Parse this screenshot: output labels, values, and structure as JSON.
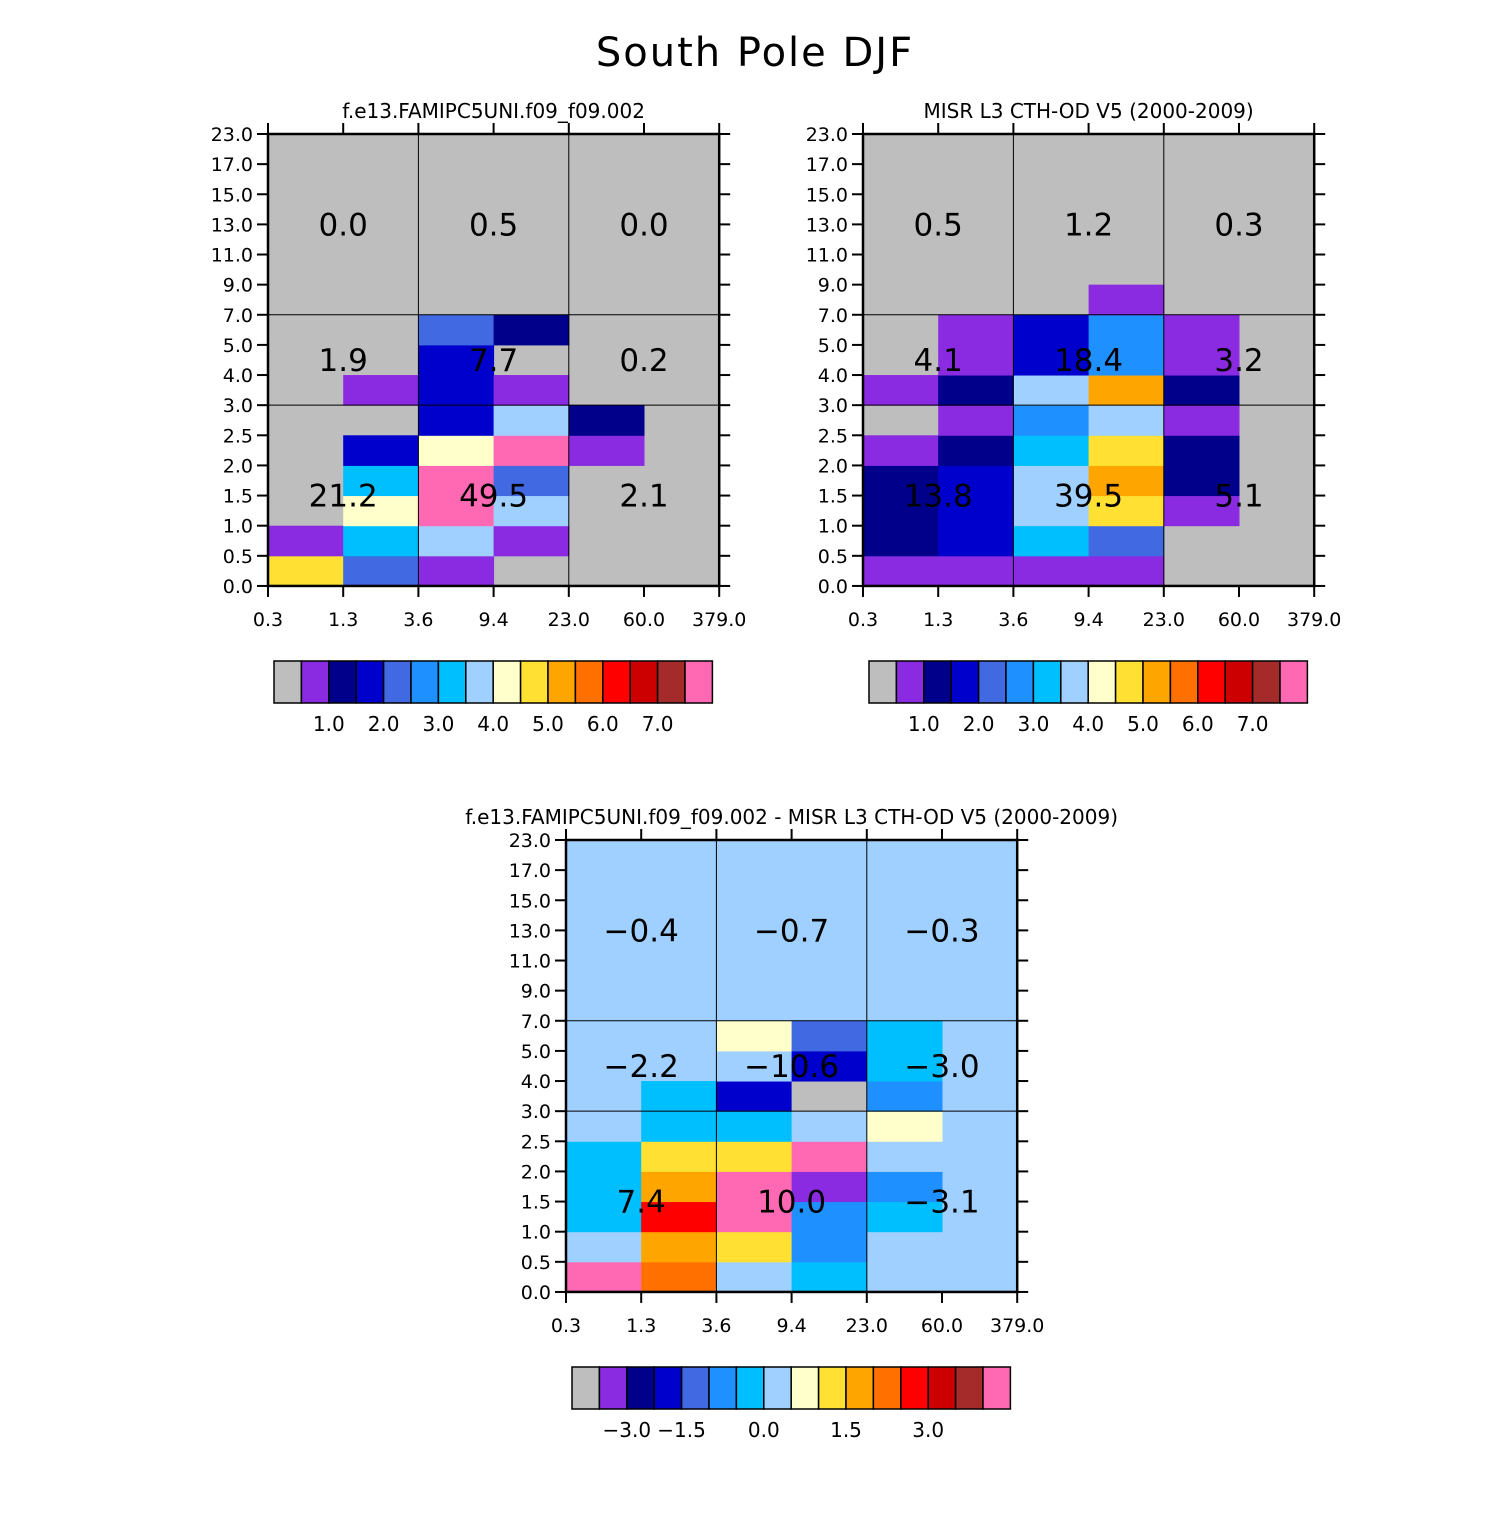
{
  "title": "South Pole DJF",
  "palette": [
    "#bebebe",
    "#8a2be2",
    "#00008b",
    "#0000cd",
    "#4169e1",
    "#1e90ff",
    "#00bfff",
    "#a0d0ff",
    "#ffffcc",
    "#ffe033",
    "#ffa500",
    "#ff7000",
    "#ff0000",
    "#cc0000",
    "#a52a2a",
    "#ff69b4"
  ],
  "chart_data": [
    {
      "id": "model",
      "type": "heatmap",
      "title": "f.e13.FAMIPC5UNI.f09_f09.002",
      "xticks": [
        "0.3",
        "1.3",
        "3.6",
        "9.4",
        "23.0",
        "60.0",
        "379.0"
      ],
      "yticks": [
        "0.0",
        "0.5",
        "1.0",
        "1.5",
        "2.0",
        "2.5",
        "3.0",
        "4.0",
        "5.0",
        "7.0",
        "9.0",
        "11.0",
        "13.0",
        "15.0",
        "17.0",
        "23.0"
      ],
      "xlabel": "",
      "ylabel": "",
      "grid_x": [
        "3.6",
        "23.0"
      ],
      "grid_y": [
        "3.0",
        "7.0"
      ],
      "cells": [
        {
          "x": 0,
          "y": 0,
          "c": 9
        },
        {
          "x": 1,
          "y": 0,
          "c": 4
        },
        {
          "x": 2,
          "y": 0,
          "c": 1
        },
        {
          "x": 0,
          "y": 1,
          "c": 1
        },
        {
          "x": 1,
          "y": 1,
          "c": 6
        },
        {
          "x": 2,
          "y": 1,
          "c": 7
        },
        {
          "x": 3,
          "y": 1,
          "c": 1
        },
        {
          "x": 1,
          "y": 2,
          "c": 8
        },
        {
          "x": 2,
          "y": 2,
          "c": 15
        },
        {
          "x": 3,
          "y": 2,
          "c": 7
        },
        {
          "x": 1,
          "y": 3,
          "c": 6
        },
        {
          "x": 2,
          "y": 3,
          "c": 15
        },
        {
          "x": 3,
          "y": 3,
          "c": 4
        },
        {
          "x": 1,
          "y": 4,
          "c": 3
        },
        {
          "x": 2,
          "y": 4,
          "c": 8
        },
        {
          "x": 3,
          "y": 4,
          "c": 15
        },
        {
          "x": 4,
          "y": 4,
          "c": 1
        },
        {
          "x": 2,
          "y": 5,
          "c": 3
        },
        {
          "x": 3,
          "y": 5,
          "c": 7
        },
        {
          "x": 4,
          "y": 5,
          "c": 2
        },
        {
          "x": 1,
          "y": 6,
          "c": 1
        },
        {
          "x": 2,
          "y": 6,
          "c": 3
        },
        {
          "x": 3,
          "y": 6,
          "c": 1
        },
        {
          "x": 2,
          "y": 7,
          "c": 3
        },
        {
          "x": 2,
          "y": 8,
          "c": 4
        },
        {
          "x": 3,
          "y": 8,
          "c": 2
        }
      ],
      "totals": [
        {
          "xi": 0,
          "yi": 0,
          "value": "21.2"
        },
        {
          "xi": 1,
          "yi": 0,
          "value": "49.5"
        },
        {
          "xi": 2,
          "yi": 0,
          "value": "2.1"
        },
        {
          "xi": 0,
          "yi": 1,
          "value": "1.9"
        },
        {
          "xi": 1,
          "yi": 1,
          "value": "7.7"
        },
        {
          "xi": 2,
          "yi": 1,
          "value": "0.2"
        },
        {
          "xi": 0,
          "yi": 2,
          "value": "0.0"
        },
        {
          "xi": 1,
          "yi": 2,
          "value": "0.5"
        },
        {
          "xi": 2,
          "yi": 2,
          "value": "0.0"
        }
      ],
      "colorbar": {
        "labels": [
          "1.0",
          "2.0",
          "3.0",
          "4.0",
          "5.0",
          "6.0",
          "7.0"
        ],
        "label_boundaries": [
          2,
          4,
          6,
          8,
          10,
          12,
          14
        ]
      }
    },
    {
      "id": "obs",
      "type": "heatmap",
      "title": "MISR L3 CTH-OD V5 (2000-2009)",
      "xticks": [
        "0.3",
        "1.3",
        "3.6",
        "9.4",
        "23.0",
        "60.0",
        "379.0"
      ],
      "yticks": [
        "0.0",
        "0.5",
        "1.0",
        "1.5",
        "2.0",
        "2.5",
        "3.0",
        "4.0",
        "5.0",
        "7.0",
        "9.0",
        "11.0",
        "13.0",
        "15.0",
        "17.0",
        "23.0"
      ],
      "xlabel": "",
      "ylabel": "",
      "grid_x": [
        "3.6",
        "23.0"
      ],
      "grid_y": [
        "3.0",
        "7.0"
      ],
      "cells": [
        {
          "x": 0,
          "y": 0,
          "c": 1
        },
        {
          "x": 1,
          "y": 0,
          "c": 1
        },
        {
          "x": 2,
          "y": 0,
          "c": 1
        },
        {
          "x": 3,
          "y": 0,
          "c": 1
        },
        {
          "x": 0,
          "y": 1,
          "c": 2
        },
        {
          "x": 1,
          "y": 1,
          "c": 3
        },
        {
          "x": 2,
          "y": 1,
          "c": 6
        },
        {
          "x": 3,
          "y": 1,
          "c": 4
        },
        {
          "x": 0,
          "y": 2,
          "c": 2
        },
        {
          "x": 1,
          "y": 2,
          "c": 3
        },
        {
          "x": 2,
          "y": 2,
          "c": 7
        },
        {
          "x": 3,
          "y": 2,
          "c": 9
        },
        {
          "x": 4,
          "y": 2,
          "c": 1
        },
        {
          "x": 0,
          "y": 3,
          "c": 2
        },
        {
          "x": 1,
          "y": 3,
          "c": 3
        },
        {
          "x": 2,
          "y": 3,
          "c": 7
        },
        {
          "x": 3,
          "y": 3,
          "c": 10
        },
        {
          "x": 4,
          "y": 3,
          "c": 2
        },
        {
          "x": 0,
          "y": 4,
          "c": 1
        },
        {
          "x": 1,
          "y": 4,
          "c": 2
        },
        {
          "x": 2,
          "y": 4,
          "c": 6
        },
        {
          "x": 3,
          "y": 4,
          "c": 9
        },
        {
          "x": 4,
          "y": 4,
          "c": 2
        },
        {
          "x": 1,
          "y": 5,
          "c": 1
        },
        {
          "x": 2,
          "y": 5,
          "c": 5
        },
        {
          "x": 3,
          "y": 5,
          "c": 7
        },
        {
          "x": 4,
          "y": 5,
          "c": 1
        },
        {
          "x": 0,
          "y": 6,
          "c": 1
        },
        {
          "x": 1,
          "y": 6,
          "c": 2
        },
        {
          "x": 2,
          "y": 6,
          "c": 7
        },
        {
          "x": 3,
          "y": 6,
          "c": 10
        },
        {
          "x": 4,
          "y": 6,
          "c": 2
        },
        {
          "x": 1,
          "y": 7,
          "c": 1
        },
        {
          "x": 2,
          "y": 7,
          "c": 3
        },
        {
          "x": 3,
          "y": 7,
          "c": 5
        },
        {
          "x": 4,
          "y": 7,
          "c": 1
        },
        {
          "x": 1,
          "y": 8,
          "c": 1
        },
        {
          "x": 2,
          "y": 8,
          "c": 3
        },
        {
          "x": 3,
          "y": 8,
          "c": 5
        },
        {
          "x": 4,
          "y": 8,
          "c": 1
        },
        {
          "x": 3,
          "y": 9,
          "c": 1
        }
      ],
      "totals": [
        {
          "xi": 0,
          "yi": 0,
          "value": "13.8"
        },
        {
          "xi": 1,
          "yi": 0,
          "value": "39.5"
        },
        {
          "xi": 2,
          "yi": 0,
          "value": "5.1"
        },
        {
          "xi": 0,
          "yi": 1,
          "value": "4.1"
        },
        {
          "xi": 1,
          "yi": 1,
          "value": "18.4"
        },
        {
          "xi": 2,
          "yi": 1,
          "value": "3.2"
        },
        {
          "xi": 0,
          "yi": 2,
          "value": "0.5"
        },
        {
          "xi": 1,
          "yi": 2,
          "value": "1.2"
        },
        {
          "xi": 2,
          "yi": 2,
          "value": "0.3"
        }
      ],
      "colorbar": {
        "labels": [
          "1.0",
          "2.0",
          "3.0",
          "4.0",
          "5.0",
          "6.0",
          "7.0"
        ],
        "label_boundaries": [
          2,
          4,
          6,
          8,
          10,
          12,
          14
        ]
      }
    },
    {
      "id": "diff",
      "type": "heatmap",
      "title": "f.e13.FAMIPC5UNI.f09_f09.002 - MISR L3 CTH-OD V5 (2000-2009)",
      "xticks": [
        "0.3",
        "1.3",
        "3.6",
        "9.4",
        "23.0",
        "60.0",
        "379.0"
      ],
      "yticks": [
        "0.0",
        "0.5",
        "1.0",
        "1.5",
        "2.0",
        "2.5",
        "3.0",
        "4.0",
        "5.0",
        "7.0",
        "9.0",
        "11.0",
        "13.0",
        "15.0",
        "17.0",
        "23.0"
      ],
      "xlabel": "",
      "ylabel": "",
      "background": 7,
      "grid_x": [
        "3.6",
        "23.0"
      ],
      "grid_y": [
        "3.0",
        "7.0"
      ],
      "cells": [
        {
          "x": 0,
          "y": 0,
          "c": 15
        },
        {
          "x": 1,
          "y": 0,
          "c": 11
        },
        {
          "x": 2,
          "y": 0,
          "c": 7
        },
        {
          "x": 3,
          "y": 0,
          "c": 6
        },
        {
          "x": 0,
          "y": 1,
          "c": 7
        },
        {
          "x": 1,
          "y": 1,
          "c": 10
        },
        {
          "x": 2,
          "y": 1,
          "c": 9
        },
        {
          "x": 3,
          "y": 1,
          "c": 5
        },
        {
          "x": 0,
          "y": 2,
          "c": 6
        },
        {
          "x": 1,
          "y": 2,
          "c": 12
        },
        {
          "x": 2,
          "y": 2,
          "c": 15
        },
        {
          "x": 3,
          "y": 2,
          "c": 5
        },
        {
          "x": 4,
          "y": 2,
          "c": 6
        },
        {
          "x": 0,
          "y": 3,
          "c": 6
        },
        {
          "x": 1,
          "y": 3,
          "c": 10
        },
        {
          "x": 2,
          "y": 3,
          "c": 15
        },
        {
          "x": 3,
          "y": 3,
          "c": 1
        },
        {
          "x": 4,
          "y": 3,
          "c": 5
        },
        {
          "x": 0,
          "y": 4,
          "c": 6
        },
        {
          "x": 1,
          "y": 4,
          "c": 9
        },
        {
          "x": 2,
          "y": 4,
          "c": 9
        },
        {
          "x": 3,
          "y": 4,
          "c": 15
        },
        {
          "x": 4,
          "y": 4,
          "c": 7
        },
        {
          "x": 0,
          "y": 5,
          "c": 7
        },
        {
          "x": 1,
          "y": 5,
          "c": 6
        },
        {
          "x": 2,
          "y": 5,
          "c": 6
        },
        {
          "x": 3,
          "y": 5,
          "c": 7
        },
        {
          "x": 4,
          "y": 5,
          "c": 8
        },
        {
          "x": 1,
          "y": 6,
          "c": 6
        },
        {
          "x": 2,
          "y": 6,
          "c": 3
        },
        {
          "x": 3,
          "y": 6,
          "c": 0
        },
        {
          "x": 4,
          "y": 6,
          "c": 5
        },
        {
          "x": 2,
          "y": 7,
          "c": 7
        },
        {
          "x": 3,
          "y": 7,
          "c": 3
        },
        {
          "x": 4,
          "y": 7,
          "c": 6
        },
        {
          "x": 2,
          "y": 8,
          "c": 8
        },
        {
          "x": 3,
          "y": 8,
          "c": 4
        },
        {
          "x": 4,
          "y": 8,
          "c": 6
        }
      ],
      "totals": [
        {
          "xi": 0,
          "yi": 0,
          "value": "7.4"
        },
        {
          "xi": 1,
          "yi": 0,
          "value": "10.0"
        },
        {
          "xi": 2,
          "yi": 0,
          "value": "-3.1"
        },
        {
          "xi": 0,
          "yi": 1,
          "value": "-2.2"
        },
        {
          "xi": 1,
          "yi": 1,
          "value": "-10.6"
        },
        {
          "xi": 2,
          "yi": 1,
          "value": "-3.0"
        },
        {
          "xi": 0,
          "yi": 2,
          "value": "-0.4"
        },
        {
          "xi": 1,
          "yi": 2,
          "value": "-0.7"
        },
        {
          "xi": 2,
          "yi": 2,
          "value": "-0.3"
        }
      ],
      "colorbar": {
        "labels": [
          "-3.0",
          "-1.5",
          "0.0",
          "1.5",
          "3.0"
        ],
        "label_boundaries": [
          2,
          4,
          7,
          10,
          13
        ]
      }
    }
  ]
}
